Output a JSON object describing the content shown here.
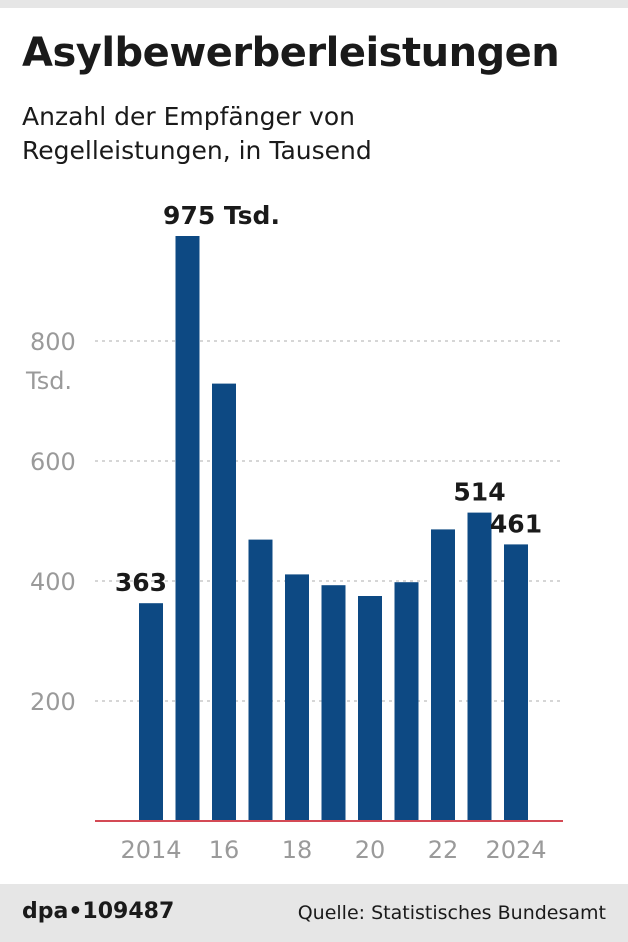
{
  "header": {
    "title": "Asylbewerberleistungen",
    "subtitle": "Anzahl der Empfänger von Regelleistungen, in Tausend"
  },
  "footer": {
    "credit": "dpa•109487",
    "source": "Quelle: Statistisches Bundesamt"
  },
  "colors": {
    "bar": "#0d4983",
    "baseline": "#d44a55",
    "grid": "#c8c8c8",
    "axis_text": "#9a9a9a"
  },
  "chart_data": {
    "type": "bar",
    "categories": [
      "2014",
      "2015",
      "2016",
      "2017",
      "2018",
      "2019",
      "2020",
      "2021",
      "2022",
      "2023",
      "2024"
    ],
    "values": [
      363,
      975,
      729,
      469,
      411,
      393,
      375,
      398,
      486,
      514,
      461
    ],
    "ylim": [
      0,
      1000
    ],
    "yticks": [
      200,
      400,
      600,
      800
    ],
    "ytick_labels": [
      "200",
      "400",
      "600",
      "800"
    ],
    "y_unit_label": "Tsd.",
    "xtick_labels": [
      "2014",
      "",
      "16",
      "",
      "18",
      "",
      "20",
      "",
      "22",
      "",
      "2024"
    ],
    "data_labels": [
      "363",
      "975 Tsd.",
      "",
      "",
      "",
      "",
      "",
      "",
      "",
      "514",
      "461"
    ],
    "grid": true,
    "legend": "none"
  }
}
